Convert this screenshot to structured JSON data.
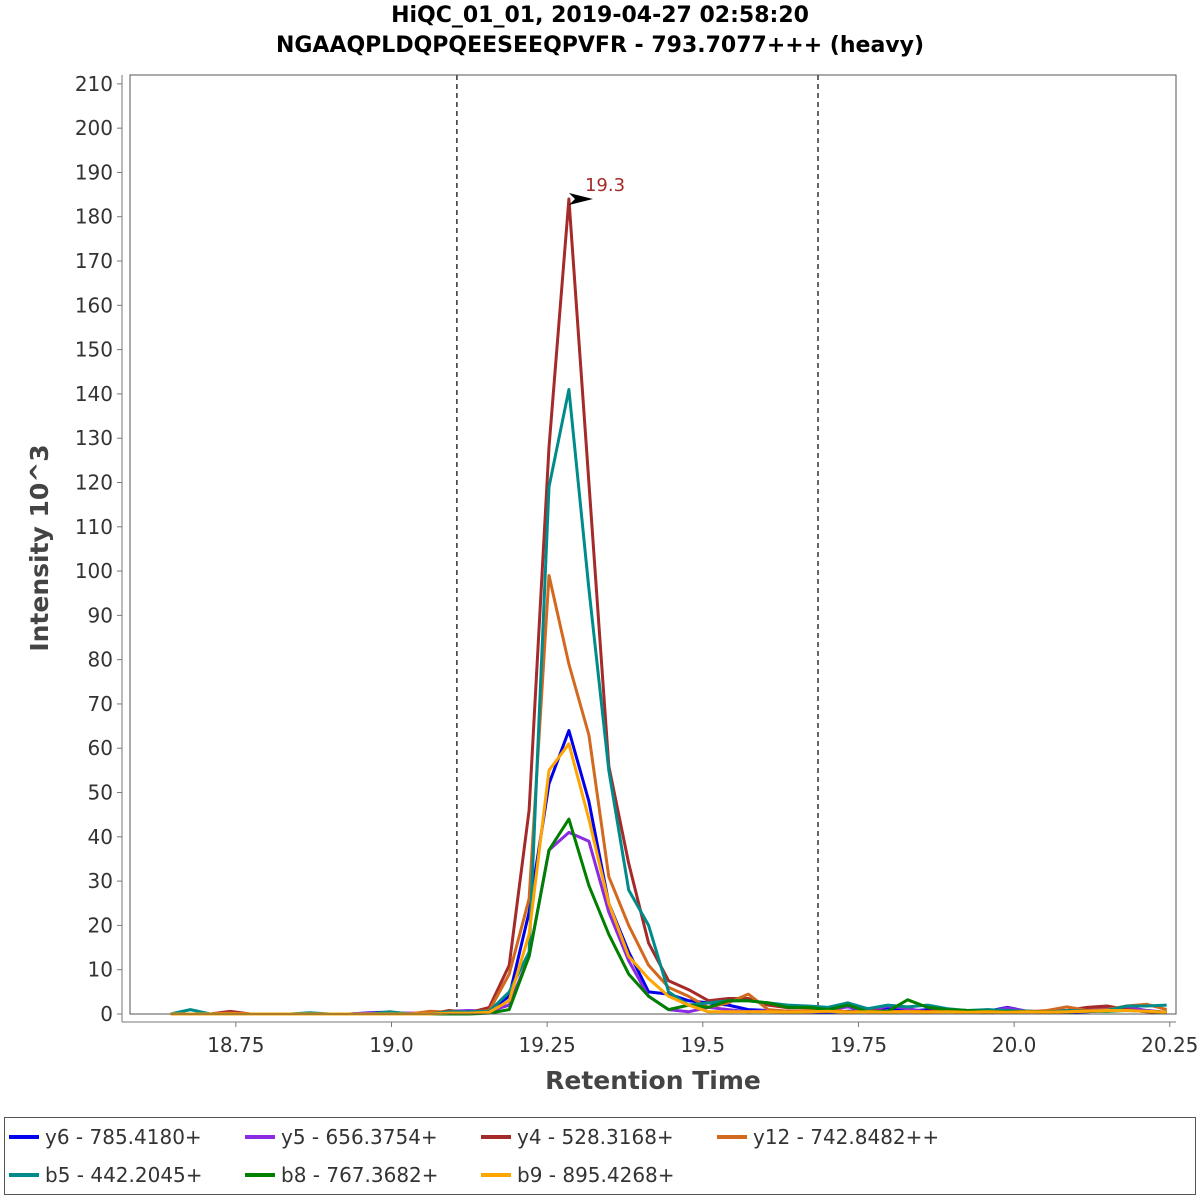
{
  "chart_data": {
    "type": "line",
    "title": "HiQC_01_01, 2019-04-27 02:58:20",
    "subtitle": "NGAAQPLDQPQEESEEQPVFR - 793.7077+++ (heavy)",
    "xlabel": "Retention Time",
    "ylabel": "Intensity 10^3",
    "xlim": [
      18.58,
      20.26
    ],
    "ylim": [
      0,
      212
    ],
    "x_ticks": [
      18.75,
      19.0,
      19.25,
      19.5,
      19.75,
      20.0,
      20.25
    ],
    "x_tick_labels": [
      "18.75",
      "19.0",
      "19.25",
      "19.5",
      "19.75",
      "20.0",
      "20.25"
    ],
    "y_ticks": [
      0,
      10,
      20,
      30,
      40,
      50,
      60,
      70,
      80,
      90,
      100,
      110,
      120,
      130,
      140,
      150,
      160,
      170,
      180,
      190,
      200,
      210
    ],
    "y_tick_labels": [
      "0",
      "10",
      "20",
      "30",
      "40",
      "50",
      "60",
      "70",
      "80",
      "90",
      "100",
      "110",
      "120",
      "130",
      "140",
      "150",
      "160",
      "170",
      "180",
      "190",
      "200",
      "210"
    ],
    "integration_bounds": [
      19.105,
      19.685
    ],
    "peak_annotation": {
      "label": "19.3",
      "x": 19.33,
      "y": 184,
      "color": "#a52a2a"
    },
    "x": [
      18.645,
      18.677,
      18.709,
      18.741,
      18.773,
      18.805,
      18.837,
      18.869,
      18.901,
      18.933,
      18.965,
      18.997,
      19.029,
      19.061,
      19.093,
      19.125,
      19.157,
      19.189,
      19.221,
      19.253,
      19.285,
      19.317,
      19.349,
      19.381,
      19.413,
      19.445,
      19.477,
      19.509,
      19.541,
      19.573,
      19.605,
      19.637,
      19.669,
      19.701,
      19.733,
      19.765,
      19.797,
      19.829,
      19.861,
      19.893,
      19.925,
      19.957,
      19.989,
      20.021,
      20.053,
      20.085,
      20.117,
      20.149,
      20.181,
      20.213,
      20.245
    ],
    "series": [
      {
        "name": "y6 - 785.4180+",
        "color": "#0000ee",
        "values": [
          0,
          0,
          0,
          0,
          0,
          0,
          0,
          0,
          0,
          0,
          0.3,
          0.4,
          0,
          0,
          0.5,
          0.3,
          0.8,
          4,
          23,
          52,
          64,
          48,
          25,
          14,
          5,
          4.5,
          3,
          2.5,
          2,
          1,
          0.8,
          0.5,
          0.5,
          0.4,
          0.6,
          0.8,
          1.4,
          0.6,
          1,
          0.8,
          0.4,
          0.6,
          1.5,
          0.6,
          0.5,
          0.4,
          0.5,
          0.8,
          1.0,
          0.8,
          0.3
        ]
      },
      {
        "name": "y5 - 656.3754+",
        "color": "#8a2be2",
        "values": [
          0,
          0,
          0,
          0,
          0,
          0,
          0,
          0,
          0,
          0,
          0.2,
          0.3,
          0.2,
          0.2,
          0.6,
          0.8,
          0.6,
          2,
          13,
          37,
          41,
          39,
          23,
          12,
          4,
          1,
          0.5,
          1.5,
          1,
          0.5,
          0.8,
          0.6,
          0.5,
          1,
          1.6,
          0.6,
          1.8,
          1.2,
          0.5,
          1,
          0.8,
          0.5,
          1.4,
          0.6,
          0.5,
          0.8,
          1,
          1.2,
          1.5,
          0.8,
          0.4
        ]
      },
      {
        "name": "y4 - 528.3168+",
        "color": "#a52a2a",
        "values": [
          0,
          0,
          0,
          0.6,
          0,
          0,
          0,
          0,
          0,
          0,
          0,
          0,
          0,
          0,
          0.8,
          0.3,
          1.5,
          11,
          46,
          128,
          184,
          120,
          56,
          34,
          16,
          7.5,
          5.5,
          3,
          3.5,
          3.5,
          2,
          1.4,
          1.5,
          1.2,
          2.5,
          0.8,
          0.6,
          0.5,
          0.6,
          0.8,
          0.4,
          0.4,
          0.5,
          0.6,
          0.5,
          0.8,
          1.5,
          1.8,
          1.0,
          0.5,
          0.3
        ]
      },
      {
        "name": "y12 - 742.8482++",
        "color": "#d2691e",
        "values": [
          0,
          0,
          0,
          0.2,
          0,
          0,
          0,
          0,
          0,
          0,
          0,
          0.4,
          0,
          0.6,
          0.4,
          0.4,
          0.8,
          9,
          26,
          99,
          79,
          63,
          31,
          20,
          11,
          6,
          4,
          1.5,
          2.5,
          4.5,
          1,
          0.6,
          0.8,
          1,
          0.5,
          0.6,
          0.5,
          0.6,
          0.5,
          0.6,
          0.4,
          1,
          0.6,
          0.5,
          0.8,
          1.6,
          0.8,
          1,
          1.8,
          2.2,
          1
        ]
      },
      {
        "name": "b5 - 442.2045+",
        "color": "#008b8b",
        "values": [
          0,
          1,
          0,
          0,
          0,
          0,
          0,
          0.3,
          0,
          0,
          0,
          0.5,
          0,
          0,
          0.5,
          0.5,
          0.6,
          5,
          14,
          119,
          141,
          96,
          55,
          28,
          20,
          5,
          2,
          2.5,
          3,
          3,
          2.5,
          2,
          1.8,
          1.5,
          2.5,
          1.2,
          2,
          1.6,
          2,
          1.2,
          0.8,
          1,
          0.8,
          0.6,
          0.4,
          0.8,
          0.6,
          0.8,
          1.8,
          1.8,
          2
        ]
      },
      {
        "name": "b8 - 767.3682+",
        "color": "#008000",
        "values": [
          0,
          0,
          0,
          0,
          0,
          0,
          0,
          0,
          0,
          0,
          0,
          0,
          0,
          0,
          0,
          0,
          0.2,
          1,
          13,
          37,
          44,
          29,
          18,
          9,
          4,
          1,
          2,
          1.5,
          3,
          3,
          2.5,
          1.5,
          1.5,
          1,
          2,
          0.5,
          0.6,
          3.2,
          1.5,
          1,
          0.8,
          0.6,
          0.5,
          0.6,
          0.4,
          0.5,
          0.6,
          0.6,
          0.8,
          0.6,
          0.4
        ]
      },
      {
        "name": "b9 - 895.4268+",
        "color": "#ffa500",
        "values": [
          0,
          0,
          0,
          0,
          0,
          0,
          0,
          0,
          0,
          0,
          0,
          0,
          0,
          0,
          0.2,
          0.2,
          0.4,
          3,
          18,
          55,
          61,
          44,
          25,
          13,
          8,
          4,
          2,
          0.5,
          0.5,
          0.5,
          0.5,
          0.4,
          0.5,
          0.6,
          0.4,
          0.5,
          0.4,
          0.5,
          0.4,
          0.5,
          0.4,
          0.5,
          0.4,
          0.5,
          0.4,
          0.5,
          0.6,
          0.8,
          0.8,
          0.6,
          0.4
        ]
      }
    ]
  }
}
